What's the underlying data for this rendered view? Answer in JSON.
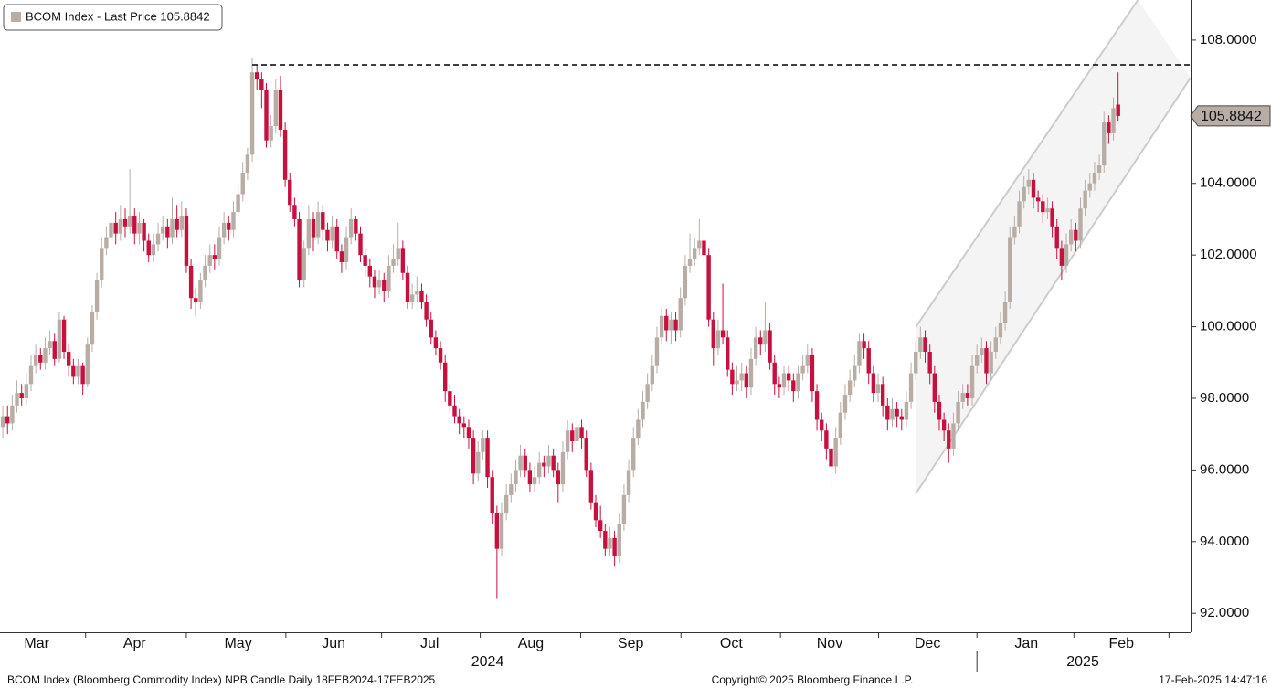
{
  "chart_data": {
    "type": "candlestick",
    "legend": "BCOM Index - Last Price 105.8842",
    "last_price": 105.8842,
    "reference_line": 107.31,
    "channel_upper": {
      "x": [
        194,
        241.2
      ],
      "y": [
        99.99,
        109.12
      ]
    },
    "channel_lower": {
      "x": [
        194,
        252.4
      ],
      "y": [
        95.34,
        106.95
      ]
    },
    "up_color": "#b8ada5",
    "down_color": "#c8103f",
    "xlim": [
      -0.6,
      252.4
    ],
    "ylim": [
      91.47,
      109.12
    ],
    "yticks": [
      {
        "value": 92,
        "label": "92.0000"
      },
      {
        "value": 94,
        "label": "94.0000"
      },
      {
        "value": 96,
        "label": "96.0000"
      },
      {
        "value": 98,
        "label": "98.0000"
      },
      {
        "value": 100,
        "label": "100.0000"
      },
      {
        "value": 102,
        "label": "102.0000"
      },
      {
        "value": 104,
        "label": "104.0000"
      },
      {
        "value": 108,
        "label": "108.0000"
      }
    ],
    "xticks": [
      {
        "value": 7.2,
        "label": "Mar"
      },
      {
        "value": 28,
        "label": "Apr"
      },
      {
        "value": 50,
        "label": "May"
      },
      {
        "value": 70.3,
        "label": "Jun"
      },
      {
        "value": 90.7,
        "label": "Jul"
      },
      {
        "value": 112.2,
        "label": "Aug"
      },
      {
        "value": 133.4,
        "label": "Sep"
      },
      {
        "value": 154.8,
        "label": "Oct"
      },
      {
        "value": 175.7,
        "label": "Nov"
      },
      {
        "value": 196.5,
        "label": "Dec"
      },
      {
        "value": 217.5,
        "label": "Jan"
      },
      {
        "value": 237.7,
        "label": "Feb"
      }
    ],
    "years": [
      {
        "value": 103,
        "label": "2024"
      },
      {
        "value": 229.5,
        "label": "2025"
      }
    ],
    "footer_left": "BCOM Index (Bloomberg Commodity Index) NPB Candle  Daily 18FEB2024-17FEB2025",
    "footer_center": "Copyright© 2025 Bloomberg Finance L.P.",
    "footer_right": "17-Feb-2025 14:47:16",
    "candles": [
      [
        97.2,
        97.8,
        96.9,
        97.5
      ],
      [
        97.5,
        97.8,
        97.0,
        97.3
      ],
      [
        97.3,
        98.1,
        97.1,
        97.8
      ],
      [
        97.8,
        98.5,
        97.6,
        98.15
      ],
      [
        98.15,
        98.4,
        97.8,
        98.0
      ],
      [
        98.0,
        98.7,
        97.8,
        98.4
      ],
      [
        98.4,
        99.2,
        98.2,
        98.9
      ],
      [
        98.9,
        99.5,
        98.7,
        99.2
      ],
      [
        99.2,
        99.4,
        98.8,
        99.0
      ],
      [
        99.0,
        99.7,
        98.8,
        99.4
      ],
      [
        99.4,
        99.9,
        99.2,
        99.6
      ],
      [
        99.6,
        99.8,
        98.9,
        99.1
      ],
      [
        99.1,
        100.4,
        99.0,
        100.2
      ],
      [
        100.2,
        100.3,
        99.1,
        99.3
      ],
      [
        99.3,
        99.5,
        98.6,
        98.9
      ],
      [
        98.9,
        99.1,
        98.4,
        98.6
      ],
      [
        98.6,
        99.1,
        98.4,
        98.9
      ],
      [
        98.9,
        99.0,
        98.1,
        98.4
      ],
      [
        98.4,
        99.7,
        98.3,
        99.5
      ],
      [
        99.5,
        100.6,
        99.3,
        100.4
      ],
      [
        100.4,
        101.5,
        100.2,
        101.3
      ],
      [
        101.3,
        102.5,
        101.1,
        102.2
      ],
      [
        102.2,
        102.8,
        102.0,
        102.5
      ],
      [
        102.5,
        103.4,
        102.3,
        102.9
      ],
      [
        102.9,
        103.2,
        102.3,
        102.6
      ],
      [
        102.6,
        103.4,
        102.4,
        103.0
      ],
      [
        103.0,
        103.3,
        102.5,
        102.8
      ],
      [
        102.8,
        104.4,
        102.6,
        103.1
      ],
      [
        103.1,
        103.3,
        102.3,
        102.6
      ],
      [
        102.6,
        103.2,
        102.3,
        102.9
      ],
      [
        102.9,
        103.0,
        102.1,
        102.4
      ],
      [
        102.4,
        102.6,
        101.8,
        102.0
      ],
      [
        102.0,
        102.6,
        101.8,
        102.3
      ],
      [
        102.3,
        102.9,
        102.1,
        102.6
      ],
      [
        102.6,
        103.1,
        102.4,
        102.8
      ],
      [
        102.8,
        103.0,
        102.2,
        102.5
      ],
      [
        102.5,
        103.6,
        102.3,
        103.0
      ],
      [
        103.0,
        103.4,
        102.5,
        102.7
      ],
      [
        102.7,
        103.5,
        102.5,
        103.1
      ],
      [
        103.1,
        103.3,
        101.5,
        101.7
      ],
      [
        101.7,
        101.9,
        100.5,
        100.8
      ],
      [
        100.8,
        101.1,
        100.3,
        100.7
      ],
      [
        100.7,
        101.5,
        100.5,
        101.3
      ],
      [
        101.3,
        102.0,
        101.1,
        101.7
      ],
      [
        101.7,
        102.3,
        101.5,
        102.0
      ],
      [
        102.0,
        102.3,
        101.6,
        101.9
      ],
      [
        101.9,
        102.8,
        101.7,
        102.5
      ],
      [
        102.5,
        103.2,
        102.3,
        102.9
      ],
      [
        102.9,
        103.1,
        102.4,
        102.7
      ],
      [
        102.7,
        103.5,
        102.5,
        103.2
      ],
      [
        103.2,
        104.0,
        103.0,
        103.7
      ],
      [
        103.7,
        104.6,
        103.5,
        104.3
      ],
      [
        104.3,
        105.0,
        104.1,
        104.8
      ],
      [
        104.8,
        107.5,
        104.6,
        107.1
      ],
      [
        107.1,
        107.3,
        106.6,
        106.9
      ],
      [
        106.9,
        107.1,
        106.1,
        106.6
      ],
      [
        106.6,
        106.8,
        105.0,
        105.2
      ],
      [
        105.2,
        105.9,
        105.0,
        105.6
      ],
      [
        105.6,
        106.9,
        105.4,
        106.6
      ],
      [
        106.6,
        107.0,
        105.3,
        105.5
      ],
      [
        105.5,
        105.7,
        103.9,
        104.1
      ],
      [
        104.1,
        104.3,
        103.2,
        103.4
      ],
      [
        103.4,
        103.6,
        102.8,
        103.0
      ],
      [
        103.0,
        103.2,
        101.1,
        101.3
      ],
      [
        101.3,
        102.4,
        101.1,
        102.2
      ],
      [
        102.2,
        103.4,
        102.0,
        103.0
      ],
      [
        103.0,
        103.2,
        102.1,
        102.5
      ],
      [
        102.5,
        103.5,
        102.3,
        103.2
      ],
      [
        103.2,
        103.4,
        102.4,
        102.7
      ],
      [
        102.7,
        102.9,
        102.1,
        102.4
      ],
      [
        102.4,
        103.1,
        102.2,
        102.8
      ],
      [
        102.8,
        103.0,
        101.9,
        102.1
      ],
      [
        102.1,
        102.3,
        101.5,
        101.8
      ],
      [
        101.8,
        102.8,
        101.6,
        102.5
      ],
      [
        102.5,
        103.3,
        102.3,
        103.0
      ],
      [
        103.0,
        103.1,
        102.4,
        102.6
      ],
      [
        102.6,
        102.8,
        101.8,
        102.0
      ],
      [
        102.0,
        102.2,
        101.4,
        101.7
      ],
      [
        101.7,
        101.9,
        101.1,
        101.4
      ],
      [
        101.4,
        101.6,
        100.8,
        101.1
      ],
      [
        101.1,
        101.6,
        100.9,
        101.3
      ],
      [
        101.3,
        101.5,
        100.7,
        101.0
      ],
      [
        101.0,
        102.0,
        100.8,
        101.7
      ],
      [
        101.7,
        102.3,
        101.5,
        101.9
      ],
      [
        101.9,
        102.9,
        101.7,
        102.2
      ],
      [
        102.2,
        102.4,
        101.3,
        101.5
      ],
      [
        101.5,
        101.7,
        100.5,
        100.7
      ],
      [
        100.7,
        101.2,
        100.5,
        100.9
      ],
      [
        100.9,
        101.4,
        100.7,
        101.0
      ],
      [
        101.0,
        101.2,
        100.5,
        100.7
      ],
      [
        100.7,
        100.9,
        100.0,
        100.2
      ],
      [
        100.2,
        100.4,
        99.5,
        99.7
      ],
      [
        99.7,
        99.9,
        99.2,
        99.4
      ],
      [
        99.4,
        99.6,
        98.8,
        99.0
      ],
      [
        99.0,
        99.2,
        97.9,
        98.2
      ],
      [
        98.2,
        98.4,
        97.6,
        97.8
      ],
      [
        97.8,
        98.1,
        97.3,
        97.5
      ],
      [
        97.5,
        97.7,
        97.0,
        97.3
      ],
      [
        97.3,
        97.5,
        96.9,
        97.2
      ],
      [
        97.2,
        97.4,
        96.6,
        96.9
      ],
      [
        96.9,
        97.1,
        95.6,
        95.9
      ],
      [
        95.9,
        96.8,
        95.7,
        96.5
      ],
      [
        96.5,
        97.1,
        96.3,
        96.9
      ],
      [
        96.9,
        97.1,
        95.5,
        95.8
      ],
      [
        95.8,
        96.0,
        94.5,
        94.8
      ],
      [
        94.8,
        95.0,
        92.4,
        93.8
      ],
      [
        93.8,
        95.1,
        93.6,
        94.8
      ],
      [
        94.8,
        95.6,
        94.6,
        95.3
      ],
      [
        95.3,
        95.9,
        95.1,
        95.6
      ],
      [
        95.6,
        96.3,
        95.4,
        96.0
      ],
      [
        96.0,
        96.7,
        95.8,
        96.4
      ],
      [
        96.4,
        96.6,
        95.8,
        96.0
      ],
      [
        96.0,
        96.2,
        95.4,
        95.6
      ],
      [
        95.6,
        96.1,
        95.4,
        95.8
      ],
      [
        95.8,
        96.5,
        95.6,
        96.2
      ],
      [
        96.2,
        96.4,
        95.8,
        96.1
      ],
      [
        96.1,
        96.7,
        95.9,
        96.4
      ],
      [
        96.4,
        96.6,
        95.8,
        96.0
      ],
      [
        96.0,
        96.2,
        95.1,
        95.6
      ],
      [
        95.6,
        96.8,
        95.4,
        96.5
      ],
      [
        96.5,
        97.4,
        96.3,
        97.1
      ],
      [
        97.1,
        97.3,
        96.5,
        96.8
      ],
      [
        96.8,
        97.5,
        96.6,
        97.2
      ],
      [
        97.2,
        97.4,
        96.6,
        96.9
      ],
      [
        96.9,
        97.1,
        95.8,
        96.0
      ],
      [
        96.0,
        96.2,
        94.9,
        95.1
      ],
      [
        95.1,
        95.3,
        94.4,
        94.6
      ],
      [
        94.6,
        95.0,
        94.1,
        94.3
      ],
      [
        94.3,
        94.5,
        93.6,
        93.8
      ],
      [
        93.8,
        94.4,
        93.6,
        94.1
      ],
      [
        94.1,
        94.3,
        93.3,
        93.6
      ],
      [
        93.6,
        94.8,
        93.4,
        94.5
      ],
      [
        94.5,
        95.6,
        94.3,
        95.3
      ],
      [
        95.3,
        96.3,
        95.1,
        96.0
      ],
      [
        96.0,
        97.2,
        95.8,
        96.9
      ],
      [
        96.9,
        97.7,
        96.7,
        97.4
      ],
      [
        97.4,
        98.2,
        97.2,
        97.9
      ],
      [
        97.9,
        98.7,
        97.7,
        98.4
      ],
      [
        98.4,
        99.2,
        98.2,
        98.9
      ],
      [
        98.9,
        100.0,
        98.7,
        99.7
      ],
      [
        99.7,
        100.5,
        99.5,
        100.3
      ],
      [
        100.3,
        100.5,
        99.6,
        99.9
      ],
      [
        99.9,
        100.4,
        99.5,
        100.2
      ],
      [
        100.2,
        100.4,
        99.6,
        99.9
      ],
      [
        99.9,
        101.1,
        99.7,
        100.8
      ],
      [
        100.8,
        102.0,
        100.6,
        101.7
      ],
      [
        101.7,
        102.6,
        101.5,
        101.9
      ],
      [
        101.9,
        102.5,
        101.7,
        102.2
      ],
      [
        102.2,
        103.0,
        102.0,
        102.4
      ],
      [
        102.4,
        102.7,
        101.8,
        102.0
      ],
      [
        102.0,
        102.2,
        100.0,
        100.2
      ],
      [
        100.2,
        100.4,
        98.9,
        99.4
      ],
      [
        99.4,
        100.2,
        99.2,
        99.9
      ],
      [
        99.9,
        101.2,
        99.5,
        99.7
      ],
      [
        99.7,
        99.9,
        98.6,
        98.8
      ],
      [
        98.8,
        99.0,
        98.1,
        98.4
      ],
      [
        98.4,
        98.9,
        98.2,
        98.5
      ],
      [
        98.5,
        99.0,
        98.2,
        98.7
      ],
      [
        98.7,
        98.9,
        98.0,
        98.3
      ],
      [
        98.3,
        99.4,
        98.1,
        99.1
      ],
      [
        99.1,
        100.0,
        98.9,
        99.7
      ],
      [
        99.7,
        99.9,
        99.2,
        99.5
      ],
      [
        99.5,
        100.7,
        99.3,
        99.9
      ],
      [
        99.9,
        100.1,
        98.8,
        99.0
      ],
      [
        99.0,
        99.2,
        98.1,
        98.4
      ],
      [
        98.4,
        98.6,
        98.0,
        98.3
      ],
      [
        98.3,
        98.9,
        98.1,
        98.7
      ],
      [
        98.7,
        98.9,
        98.2,
        98.5
      ],
      [
        98.5,
        98.7,
        97.9,
        98.2
      ],
      [
        98.2,
        98.9,
        98.0,
        98.7
      ],
      [
        98.7,
        99.2,
        98.5,
        98.9
      ],
      [
        98.9,
        99.5,
        98.7,
        99.2
      ],
      [
        99.2,
        99.4,
        97.9,
        98.2
      ],
      [
        98.2,
        98.4,
        97.1,
        97.4
      ],
      [
        97.4,
        97.6,
        96.8,
        97.1
      ],
      [
        97.1,
        97.3,
        96.3,
        96.6
      ],
      [
        96.6,
        96.8,
        95.5,
        96.1
      ],
      [
        96.1,
        97.2,
        95.9,
        96.9
      ],
      [
        96.9,
        97.9,
        96.7,
        97.6
      ],
      [
        97.6,
        98.4,
        97.4,
        98.1
      ],
      [
        98.1,
        98.8,
        97.9,
        98.5
      ],
      [
        98.5,
        99.2,
        98.3,
        98.9
      ],
      [
        98.9,
        99.8,
        98.7,
        99.6
      ],
      [
        99.6,
        99.8,
        99.1,
        99.4
      ],
      [
        99.4,
        99.6,
        98.4,
        98.7
      ],
      [
        98.7,
        98.9,
        97.9,
        98.15
      ],
      [
        98.15,
        98.7,
        97.9,
        98.4
      ],
      [
        98.4,
        98.6,
        97.5,
        97.8
      ],
      [
        97.8,
        98.0,
        97.1,
        97.4
      ],
      [
        97.4,
        98.0,
        97.2,
        97.7
      ],
      [
        97.7,
        97.9,
        97.2,
        97.5
      ],
      [
        97.5,
        97.7,
        97.1,
        97.4
      ],
      [
        97.4,
        98.2,
        97.2,
        97.9
      ],
      [
        97.9,
        99.0,
        97.7,
        98.7
      ],
      [
        98.7,
        99.6,
        98.5,
        99.3
      ],
      [
        99.3,
        100.0,
        99.1,
        99.7
      ],
      [
        99.7,
        99.9,
        99.0,
        99.3
      ],
      [
        99.3,
        99.5,
        98.4,
        98.7
      ],
      [
        98.7,
        98.9,
        97.6,
        97.9
      ],
      [
        97.9,
        98.1,
        97.1,
        97.4
      ],
      [
        97.4,
        97.6,
        96.8,
        97.1
      ],
      [
        97.1,
        97.3,
        96.2,
        96.6
      ],
      [
        96.6,
        97.6,
        96.4,
        97.3
      ],
      [
        97.3,
        98.2,
        97.1,
        97.9
      ],
      [
        97.9,
        98.4,
        97.7,
        98.15
      ],
      [
        98.15,
        98.4,
        97.8,
        98.0
      ],
      [
        98.0,
        99.2,
        97.8,
        98.9
      ],
      [
        98.9,
        99.5,
        98.7,
        99.2
      ],
      [
        99.2,
        99.7,
        99.0,
        99.4
      ],
      [
        99.4,
        99.6,
        98.4,
        98.7
      ],
      [
        98.7,
        99.6,
        98.5,
        99.3
      ],
      [
        99.3,
        100.0,
        99.1,
        99.7
      ],
      [
        99.7,
        100.4,
        99.5,
        100.1
      ],
      [
        100.1,
        101.0,
        99.9,
        100.7
      ],
      [
        100.7,
        102.8,
        100.5,
        102.5
      ],
      [
        102.5,
        103.1,
        102.3,
        102.8
      ],
      [
        102.8,
        103.8,
        102.6,
        103.5
      ],
      [
        103.5,
        104.2,
        103.3,
        103.9
      ],
      [
        103.9,
        104.4,
        103.7,
        104.1
      ],
      [
        104.1,
        104.3,
        103.3,
        103.6
      ],
      [
        103.6,
        103.8,
        103.2,
        103.5
      ],
      [
        103.5,
        103.7,
        102.9,
        103.2
      ],
      [
        103.2,
        103.6,
        103.0,
        103.3
      ],
      [
        103.3,
        103.5,
        102.5,
        102.8
      ],
      [
        102.8,
        103.0,
        101.9,
        102.2
      ],
      [
        102.2,
        102.4,
        101.3,
        101.7
      ],
      [
        101.7,
        102.6,
        101.5,
        102.3
      ],
      [
        102.3,
        103.0,
        102.1,
        102.7
      ],
      [
        102.7,
        102.9,
        102.1,
        102.4
      ],
      [
        102.4,
        103.6,
        102.2,
        103.3
      ],
      [
        103.3,
        104.1,
        103.1,
        103.8
      ],
      [
        103.8,
        104.3,
        103.6,
        104.0
      ],
      [
        104.0,
        104.6,
        103.8,
        104.3
      ],
      [
        104.3,
        104.8,
        104.1,
        104.5
      ],
      [
        104.5,
        106.0,
        104.3,
        105.7
      ],
      [
        105.7,
        105.9,
        105.1,
        105.4
      ],
      [
        105.4,
        106.4,
        105.2,
        106.1
      ],
      [
        106.2,
        107.1,
        105.75,
        105.88
      ]
    ]
  }
}
